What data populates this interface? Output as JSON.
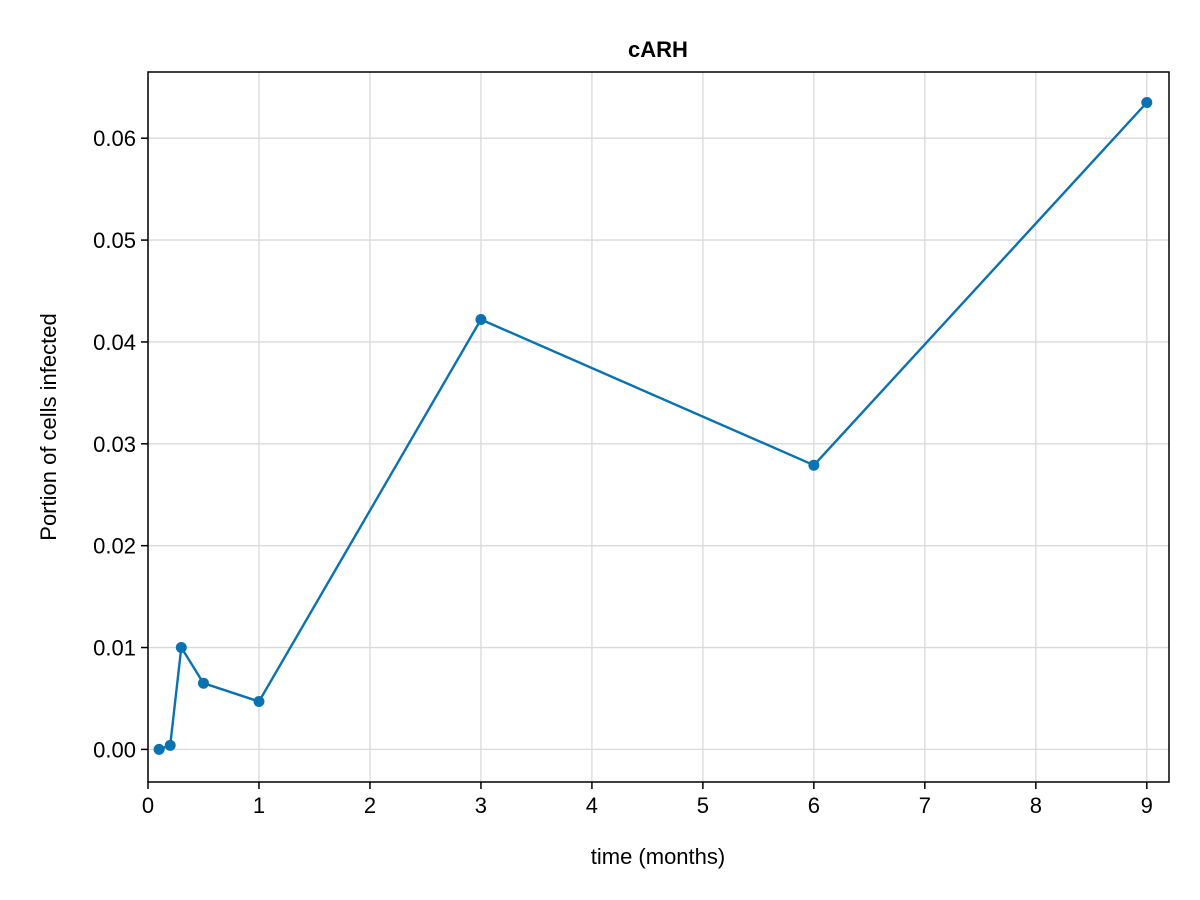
{
  "chart_data": {
    "type": "line",
    "title": "cARH",
    "xlabel": "time (months)",
    "ylabel": "Portion of cells infected",
    "xlim": [
      0,
      9.2
    ],
    "ylim": [
      -0.0032,
      0.0665
    ],
    "xticks": [
      0,
      1,
      2,
      3,
      4,
      5,
      6,
      7,
      8,
      9
    ],
    "yticks": [
      0.0,
      0.01,
      0.02,
      0.03,
      0.04,
      0.05,
      0.06
    ],
    "ytick_labels": [
      "0.00",
      "0.01",
      "0.02",
      "0.03",
      "0.04",
      "0.05",
      "0.06"
    ],
    "grid": true,
    "legend": "none",
    "series": [
      {
        "color": "#0a72b0",
        "markers": true,
        "x": [
          0.1,
          0.2,
          0.3,
          0.5,
          1,
          3,
          6,
          9
        ],
        "y": [
          0.0,
          0.0004,
          0.01,
          0.0065,
          0.0047,
          0.0422,
          0.0279,
          0.0635
        ]
      }
    ]
  }
}
